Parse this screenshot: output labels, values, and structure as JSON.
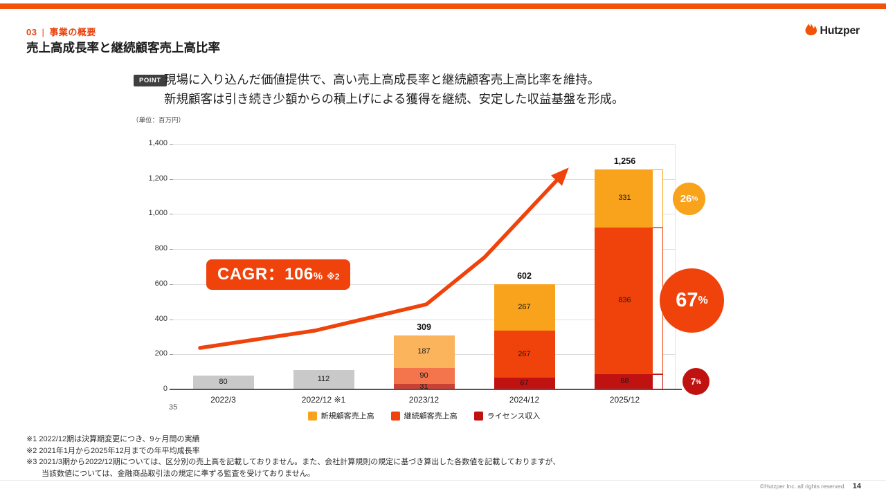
{
  "colors": {
    "brand": "#F15208",
    "accent": "#F0420B"
  },
  "header": {
    "section_no": "03",
    "divider": "|",
    "section_title": "事業の概要",
    "page_title": "売上高成長率と継続顧客売上高比率",
    "logo_text": "Hutzper"
  },
  "point": {
    "badge": "POINT",
    "line1": "現場に入り込んだ価値提供で、高い売上高成長率と継続顧客売上高比率を維持。",
    "line2": "新規顧客は引き続き少額からの積上げによる獲得を継続、安定した収益基盤を形成。"
  },
  "chart_data": {
    "type": "bar",
    "stacked": true,
    "unit_label": "（単位：百万円）",
    "ylim": [
      0,
      1400
    ],
    "ytick_step": 200,
    "yticks": [
      "0",
      "200",
      "400",
      "600",
      "800",
      "1,000",
      "1,200",
      "1,400"
    ],
    "categories": [
      "2022/3",
      "2022/12 ※1",
      "2023/12",
      "2024/12",
      "2025/12"
    ],
    "totals": [
      80,
      112,
      309,
      602,
      1256
    ],
    "total_labels": [
      "80",
      "112",
      "309",
      "602",
      "1,256"
    ],
    "series": [
      {
        "name": "新規顧客売上高",
        "color": "#F9A21B",
        "values": [
          null,
          null,
          187,
          267,
          331
        ],
        "segment_colors": [
          null,
          null,
          "#FBB45C",
          "#F9A21B",
          "#F9A21B"
        ]
      },
      {
        "name": "継続顧客売上高",
        "color": "#F0420B",
        "values": [
          null,
          null,
          90,
          267,
          836
        ],
        "segment_colors": [
          null,
          null,
          "#F4744B",
          "#F0420B",
          "#F0420B"
        ]
      },
      {
        "name": "ライセンス収入",
        "color": "#C11212",
        "values": [
          null,
          null,
          31,
          67,
          88
        ],
        "segment_colors": [
          null,
          null,
          "#C94034",
          "#C11212",
          "#C11212"
        ]
      }
    ],
    "undisclosed": {
      "values": [
        80,
        112,
        null,
        null,
        null
      ],
      "color": "#C9C9C9"
    },
    "cagr": {
      "main": "CAGR：106",
      "pct": "%",
      "note": "※2"
    },
    "ratios": [
      {
        "value": "26",
        "suffix": "%",
        "color": "#F9A21B"
      },
      {
        "value": "67",
        "suffix": "%",
        "color": "#F0420B"
      },
      {
        "value": "7",
        "suffix": "%",
        "color": "#C11212"
      }
    ],
    "misc_label": "35"
  },
  "footnotes": [
    "※1 2022/12期は決算期変更につき、9ヶ月間の実績",
    "※2 2021年1月から2025年12月までの年平均成長率",
    "※3 2021/3期から2022/12期については、区分別の売上高を記載しておりません。また、会社計算規則の規定に基づき算出した各数値を記載しておりますが、",
    "　　当該数値については、金融商品取引法の規定に準ずる監査を受けておりません。"
  ],
  "footer": {
    "copyright": "©Hutzper Inc. all rights reserved.",
    "page_number": "14"
  }
}
